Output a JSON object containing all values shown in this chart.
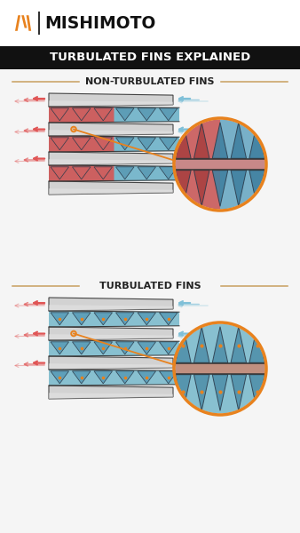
{
  "title": "TURBULATED FINS EXPLAINED",
  "brand": "MISHIMOTO",
  "section1_label": "NON-TURBULATED FINS",
  "section2_label": "TURBULATED FINS",
  "bg_color": "#f5f5f5",
  "header_bar_color": "#1a1a1a",
  "orange_color": "#e8821e",
  "red_arrow_color": "#e05555",
  "blue_arrow_color": "#7fc0d8",
  "zoom_circle_color": "#e8821e",
  "separator_color": "#c8a060",
  "tube_face": "#d2d2d2",
  "tube_edge": "#444444",
  "fin_red": "#cc6060",
  "fin_blue": "#7ab8cc",
  "fin_turb": "#88c0d0",
  "zoom_red_bg": "#cc6868",
  "zoom_blue_bg": "#78b0c8",
  "zoom_turb_bg": "#88c0d0",
  "stripe_color": "#c88888",
  "stripe_turb": "#c09080"
}
